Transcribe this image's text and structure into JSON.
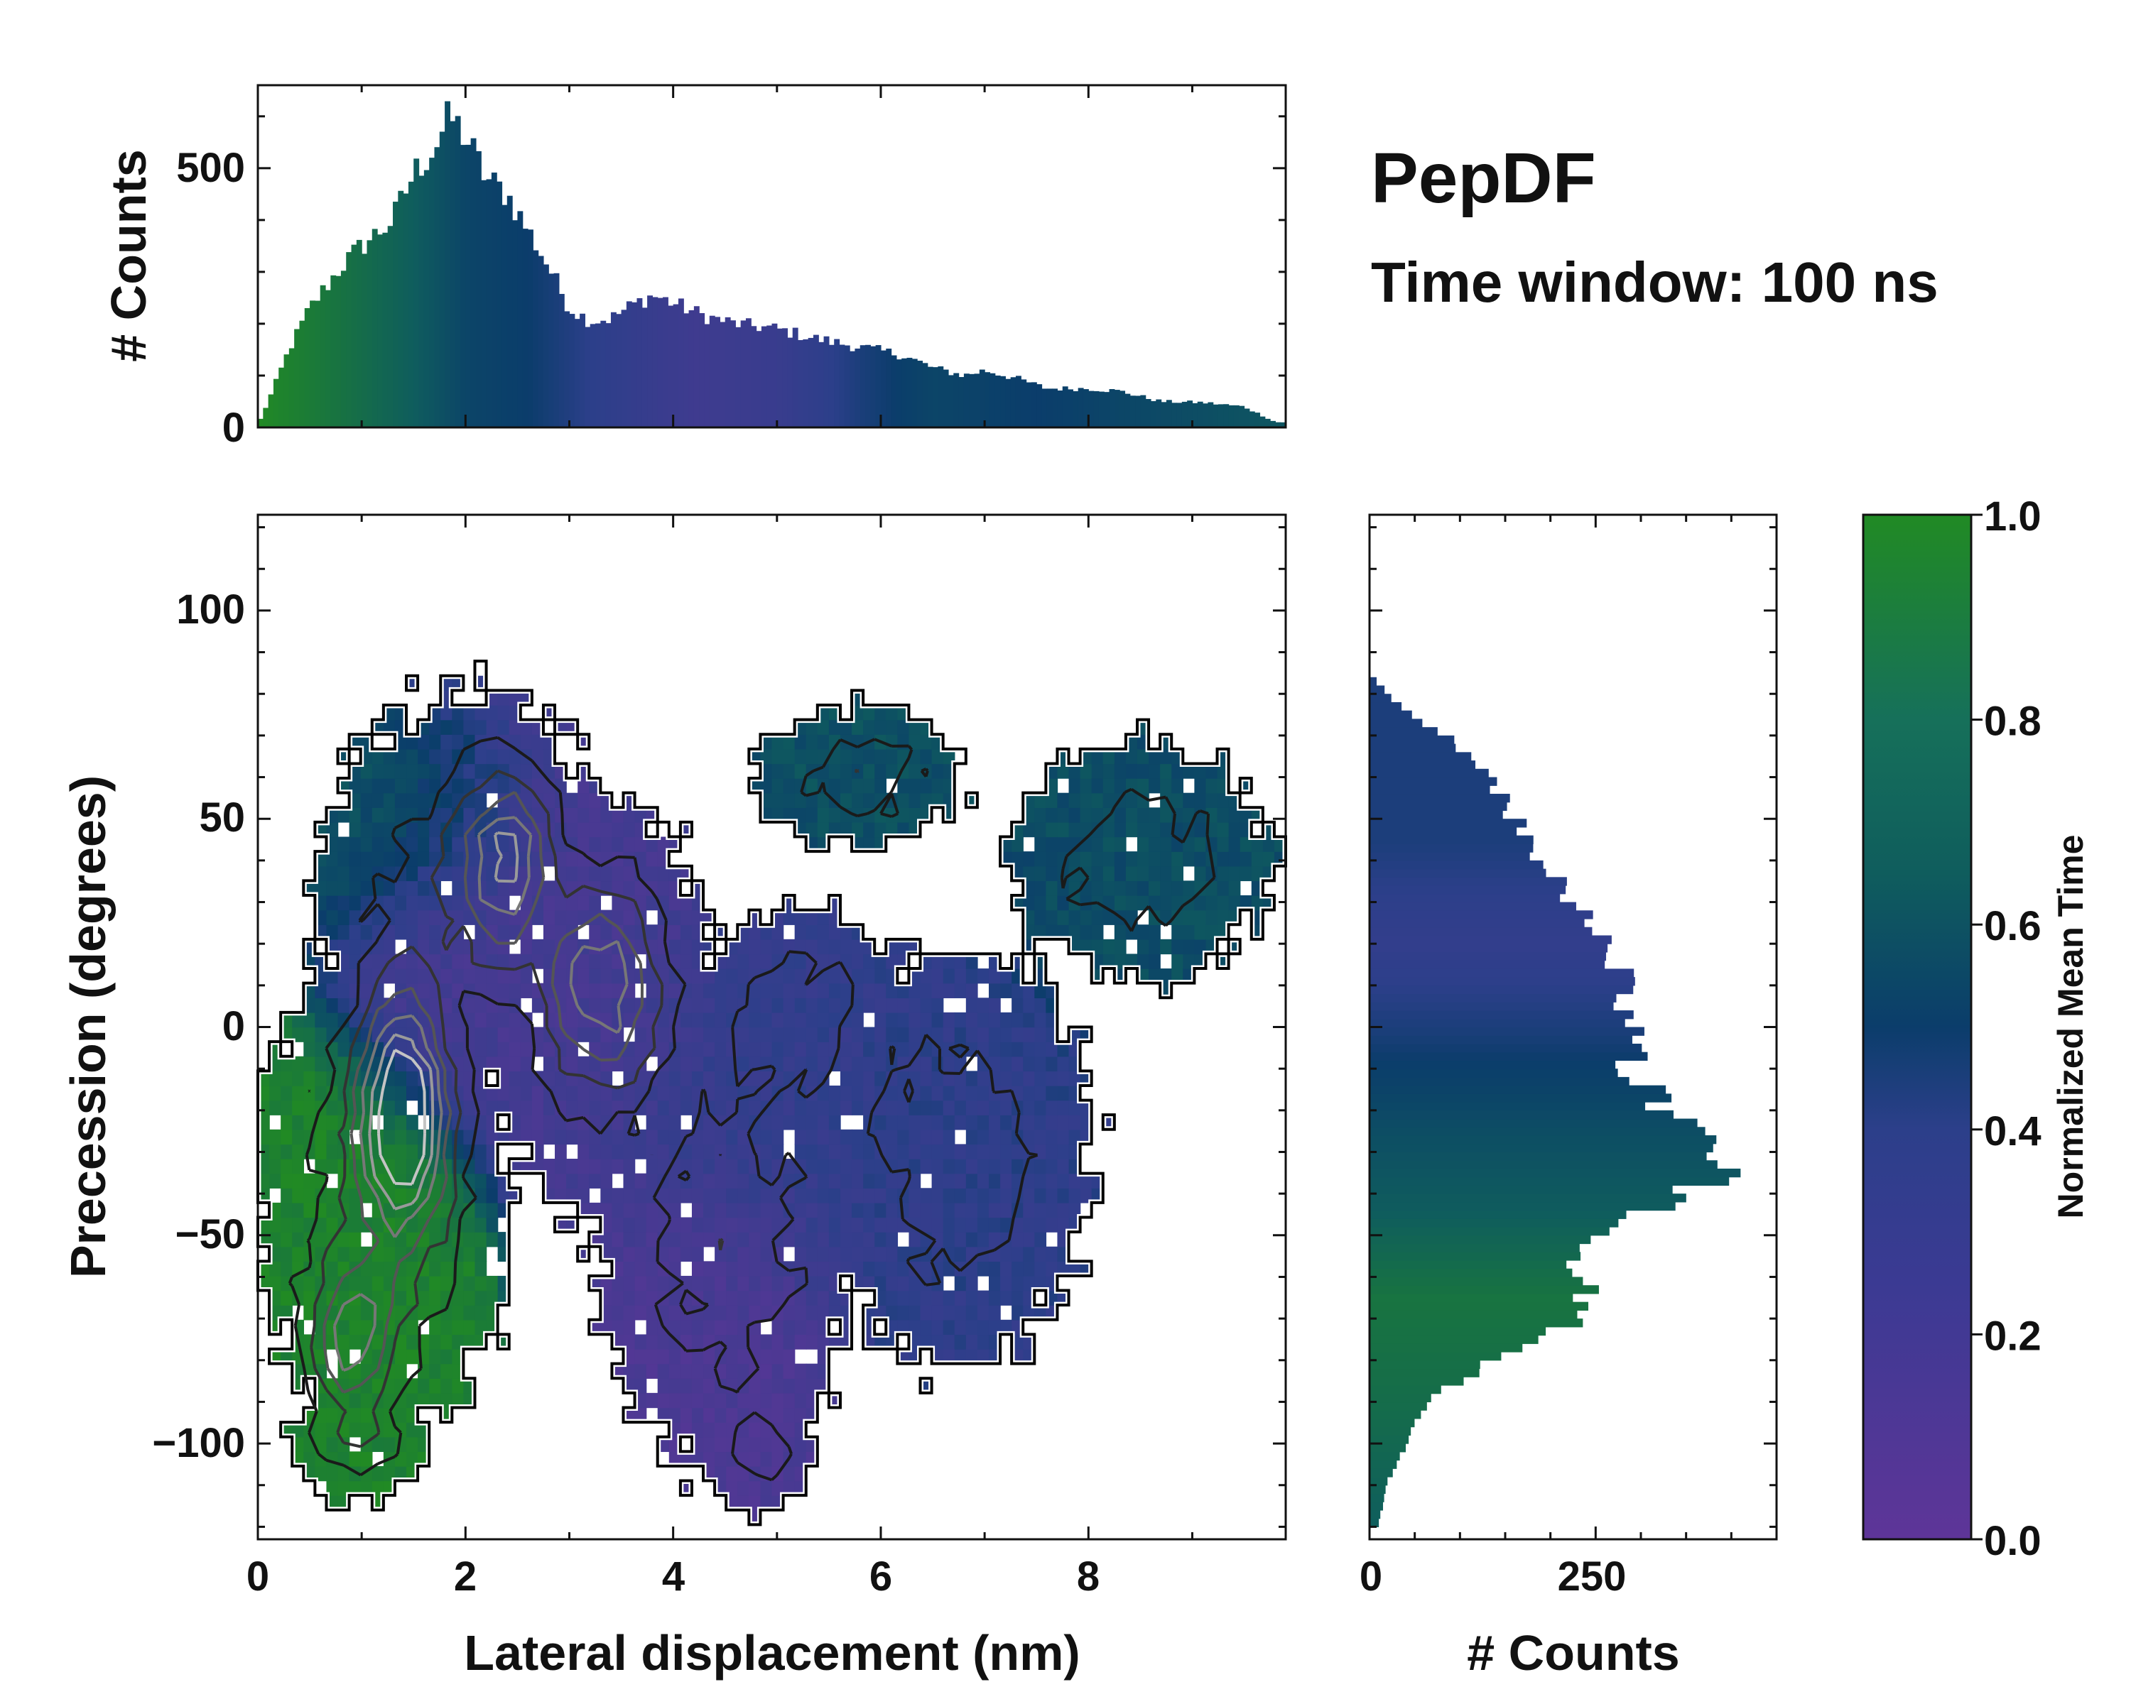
{
  "title": "PepDF",
  "subtitle": "Time window: 100 ns",
  "colors": {
    "cmap_low": "#5e3598",
    "cmap_mid1": "#2c3f8a",
    "cmap_mid2": "#0b3d6b",
    "cmap_mid3": "#0f5d5d",
    "cmap_high": "#218a24",
    "axis": "#111111",
    "outline": "#000000"
  },
  "chart_data": [
    {
      "id": "top-histogram",
      "type": "bar",
      "title": "",
      "xlabel": "",
      "ylabel": "# Counts",
      "xlim": [
        0,
        9.9
      ],
      "ylim": [
        0,
        660
      ],
      "yticks": [
        "0",
        "500"
      ],
      "bin_width": 0.05,
      "profile": [
        [
          0.0,
          5
        ],
        [
          0.1,
          50
        ],
        [
          0.3,
          150
        ],
        [
          0.5,
          230
        ],
        [
          0.8,
          310
        ],
        [
          1.0,
          350
        ],
        [
          1.3,
          400
        ],
        [
          1.5,
          490
        ],
        [
          1.7,
          540
        ],
        [
          1.85,
          600
        ],
        [
          2.0,
          560
        ],
        [
          2.2,
          480
        ],
        [
          2.4,
          450
        ],
        [
          2.6,
          380
        ],
        [
          2.8,
          310
        ],
        [
          3.0,
          230
        ],
        [
          3.2,
          205
        ],
        [
          3.4,
          210
        ],
        [
          3.6,
          235
        ],
        [
          3.8,
          255
        ],
        [
          4.0,
          240
        ],
        [
          4.3,
          215
        ],
        [
          4.6,
          200
        ],
        [
          5.0,
          190
        ],
        [
          5.4,
          170
        ],
        [
          5.8,
          155
        ],
        [
          6.2,
          140
        ],
        [
          6.5,
          115
        ],
        [
          6.8,
          100
        ],
        [
          7.0,
          110
        ],
        [
          7.3,
          95
        ],
        [
          7.6,
          75
        ],
        [
          8.0,
          75
        ],
        [
          8.3,
          70
        ],
        [
          8.7,
          50
        ],
        [
          9.1,
          48
        ],
        [
          9.5,
          40
        ],
        [
          9.8,
          10
        ]
      ],
      "color_profile": [
        [
          0.0,
          1.0
        ],
        [
          1.5,
          0.7
        ],
        [
          2.0,
          0.55
        ],
        [
          2.6,
          0.5
        ],
        [
          3.2,
          0.4
        ],
        [
          4.2,
          0.25
        ],
        [
          5.0,
          0.3
        ],
        [
          5.8,
          0.45
        ],
        [
          6.5,
          0.55
        ],
        [
          7.5,
          0.5
        ],
        [
          9.8,
          0.65
        ]
      ]
    },
    {
      "id": "main-heatmap",
      "type": "heatmap",
      "title": "",
      "xlabel": "Lateral displacement (nm)",
      "ylabel": "Precession (degrees)",
      "xlim": [
        0,
        9.9
      ],
      "ylim": [
        -123,
        123
      ],
      "xticks": [
        "0",
        "2",
        "4",
        "6",
        "8"
      ],
      "yticks": [
        "−100",
        "−50",
        "0",
        "50",
        "100"
      ],
      "colorbar_label": "Normalized Mean Time",
      "regions": [
        {
          "name": "green cluster",
          "x": 0.9,
          "y": -55,
          "sx": 0.75,
          "sy": 35,
          "time": 0.95
        },
        {
          "name": "purple core",
          "x": 1.8,
          "y": 20,
          "sx": 0.7,
          "sy": 30,
          "time": 0.2
        },
        {
          "name": "upper teal",
          "x": 1.3,
          "y": 45,
          "sx": 0.8,
          "sy": 18,
          "time": 0.65
        },
        {
          "name": "center purple",
          "x": 3.2,
          "y": 10,
          "sx": 0.8,
          "sy": 35,
          "time": 0.2
        },
        {
          "name": "middle blue",
          "x": 4.8,
          "y": -20,
          "sx": 1.0,
          "sy": 30,
          "time": 0.35
        },
        {
          "name": "lower purple",
          "x": 4.3,
          "y": -70,
          "sx": 0.8,
          "sy": 30,
          "time": 0.15
        },
        {
          "name": "upper right teal",
          "x": 5.8,
          "y": 65,
          "sx": 0.8,
          "sy": 15,
          "time": 0.62
        },
        {
          "name": "right blue",
          "x": 6.8,
          "y": -40,
          "sx": 0.9,
          "sy": 40,
          "time": 0.38
        },
        {
          "name": "far right teal",
          "x": 8.5,
          "y": 40,
          "sx": 0.9,
          "sy": 25,
          "time": 0.6
        }
      ],
      "density_peaks": [
        {
          "x": 1.4,
          "y": -20,
          "sx": 0.4,
          "sy": 28,
          "w": 1.0
        },
        {
          "x": 2.4,
          "y": 40,
          "sx": 0.4,
          "sy": 20,
          "w": 0.6
        },
        {
          "x": 3.3,
          "y": 10,
          "sx": 0.5,
          "sy": 20,
          "w": 0.5
        },
        {
          "x": 0.9,
          "y": -75,
          "sx": 0.4,
          "sy": 18,
          "w": 0.6
        }
      ]
    },
    {
      "id": "right-histogram",
      "type": "bar",
      "orientation": "horizontal",
      "title": "",
      "xlabel": "# Counts",
      "ylabel": "",
      "xlim": [
        0,
        450
      ],
      "ylim": [
        -123,
        123
      ],
      "xticks": [
        "0",
        "250"
      ],
      "bin_width": 2,
      "profile": [
        [
          -120,
          10
        ],
        [
          -110,
          18
        ],
        [
          -100,
          40
        ],
        [
          -92,
          55
        ],
        [
          -86,
          90
        ],
        [
          -80,
          140
        ],
        [
          -74,
          200
        ],
        [
          -68,
          240
        ],
        [
          -62,
          245
        ],
        [
          -55,
          225
        ],
        [
          -48,
          250
        ],
        [
          -42,
          330
        ],
        [
          -36,
          380
        ],
        [
          -30,
          400
        ],
        [
          -24,
          340
        ],
        [
          -18,
          320
        ],
        [
          -12,
          290
        ],
        [
          -6,
          300
        ],
        [
          0,
          290
        ],
        [
          6,
          270
        ],
        [
          12,
          290
        ],
        [
          18,
          260
        ],
        [
          24,
          250
        ],
        [
          30,
          220
        ],
        [
          36,
          200
        ],
        [
          42,
          180
        ],
        [
          48,
          170
        ],
        [
          54,
          150
        ],
        [
          60,
          130
        ],
        [
          66,
          110
        ],
        [
          72,
          70
        ],
        [
          78,
          30
        ],
        [
          83,
          8
        ]
      ],
      "color_profile": [
        [
          -120,
          0.7
        ],
        [
          -90,
          0.8
        ],
        [
          -65,
          0.85
        ],
        [
          -45,
          0.7
        ],
        [
          -25,
          0.6
        ],
        [
          0,
          0.45
        ],
        [
          20,
          0.35
        ],
        [
          45,
          0.45
        ],
        [
          83,
          0.45
        ]
      ]
    }
  ],
  "colorbar": {
    "label": "Normalized Mean Time",
    "range": [
      0.0,
      1.0
    ],
    "ticks": [
      "0.0",
      "0.2",
      "0.4",
      "0.6",
      "0.8",
      "1.0"
    ]
  }
}
